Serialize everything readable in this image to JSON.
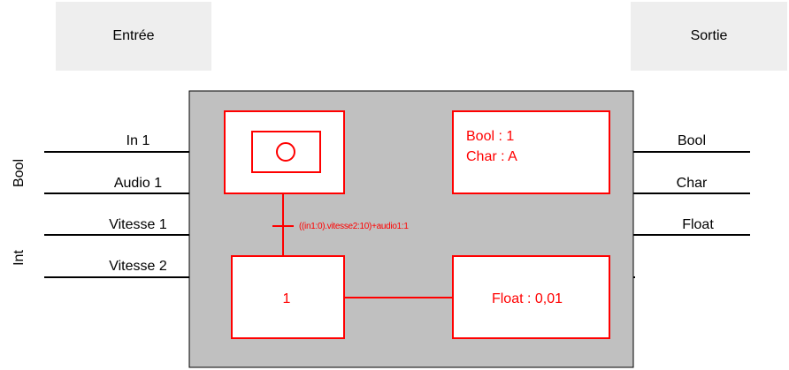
{
  "header": {
    "input_label": "Entrée",
    "output_label": "Sortie"
  },
  "inputs": {
    "type_bool": "Bool",
    "type_int": "Int",
    "in1": "In 1",
    "audio1": "Audio 1",
    "vitesse1": "Vitesse 1",
    "vitesse2": "Vitesse 2"
  },
  "outputs": {
    "bool": "Bool",
    "char": "Char",
    "float": "Float"
  },
  "blocks": {
    "step_number": "1",
    "transition_condition": "((in1:0).vitesse2:10)+audio1:1",
    "action_bool": "Bool : 1",
    "action_char": "Char : A",
    "action_float": "Float : 0,01"
  },
  "colors": {
    "accent": "#ff0000",
    "panel": "#c0c0c0",
    "header_bg": "#eeeeee",
    "line": "#000000"
  }
}
